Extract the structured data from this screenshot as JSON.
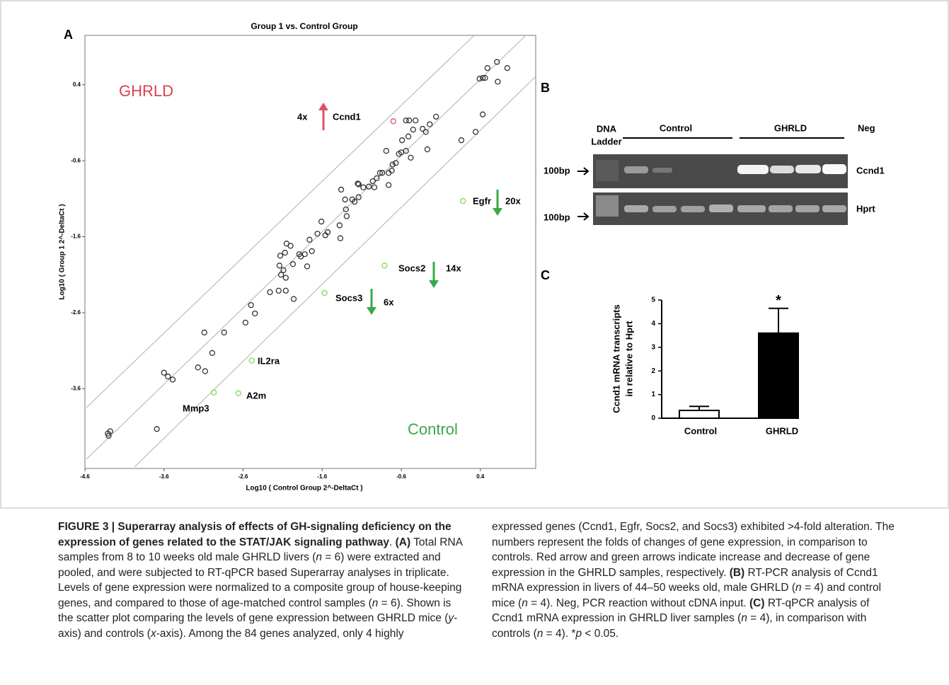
{
  "panel_labels": [
    "A",
    "B",
    "C"
  ],
  "chart_data": [
    {
      "type": "scatter",
      "title": "Group 1 vs. Control Group",
      "x_label": "Log10 ( Control Group 2^-DeltaCt )",
      "y_label": "Log10 ( Group 1 2^-DeltaCt )",
      "xlim": [
        -4.6,
        1.1
      ],
      "ylim": [
        -4.65,
        1.05
      ],
      "xticks": [
        -4.6,
        -3.6,
        -2.6,
        -1.6,
        -0.6,
        0.4
      ],
      "yticks": [
        0.4,
        -0.6,
        -1.6,
        -2.6,
        -3.6
      ],
      "series": [
        {
          "color": "#333333",
          "x": [
            0.61,
            0.74,
            0.49,
            0.43,
            0.46,
            0.39,
            0.62,
            0.43,
            0.34,
            0.16,
            -0.16,
            -0.24,
            -0.29,
            -0.33,
            -0.27,
            -0.42,
            -0.5,
            -0.54,
            -0.45,
            -0.51,
            -0.59,
            -0.6,
            -0.54,
            -0.48,
            -0.63,
            -0.67,
            -0.71,
            -0.79,
            -0.72,
            -0.76,
            -0.84,
            -0.87,
            -0.91,
            -0.96,
            -1.01,
            -0.94,
            -0.76,
            -1.08,
            -1.14,
            -1.14,
            -1.19,
            -1.22,
            -1.15,
            -1.36,
            -1.31,
            -1.3,
            -1.29,
            -1.38,
            -1.37,
            -1.53,
            -1.56,
            -1.61,
            -1.66,
            -1.73,
            -1.76,
            -1.79,
            -1.97,
            -2.05,
            -2.13,
            -2.14,
            -2.09,
            -1.87,
            -1.82,
            -1.89,
            -2.0,
            -2.07,
            -1.96,
            -2.06,
            -2.06,
            -2.12,
            -2.15,
            -2.26,
            -2.45,
            -2.5,
            -2.57,
            -3.09,
            -2.84,
            -2.99,
            -3.17,
            -3.08,
            -3.6,
            -3.55,
            -3.49,
            -3.69,
            -4.31,
            -4.28,
            -4.3
          ],
          "values": [
            0.7,
            0.62,
            0.62,
            0.49,
            0.49,
            0.48,
            0.44,
            0.01,
            -0.22,
            -0.33,
            -0.02,
            -0.12,
            -0.22,
            -0.18,
            -0.45,
            -0.07,
            -0.07,
            -0.07,
            -0.19,
            -0.28,
            -0.33,
            -0.49,
            -0.47,
            -0.56,
            -0.51,
            -0.63,
            -0.65,
            -0.47,
            -0.73,
            -0.76,
            -0.76,
            -0.76,
            -0.83,
            -0.87,
            -0.94,
            -0.95,
            -0.92,
            -0.95,
            -0.91,
            -1.08,
            -1.14,
            -1.11,
            -0.9,
            -0.98,
            -1.11,
            -1.24,
            -1.33,
            -1.45,
            -1.62,
            -1.54,
            -1.58,
            -1.4,
            -1.56,
            -1.79,
            -1.64,
            -1.99,
            -1.96,
            -1.69,
            -1.85,
            -1.98,
            -2.04,
            -1.86,
            -1.83,
            -1.83,
            -1.72,
            -1.81,
            -2.42,
            -2.14,
            -2.31,
            -2.1,
            -2.31,
            -2.33,
            -2.61,
            -2.5,
            -2.73,
            -2.86,
            -2.86,
            -3.13,
            -3.32,
            -3.37,
            -3.39,
            -3.44,
            -3.48,
            -4.13,
            -4.19,
            -4.16,
            -4.22
          ]
        },
        {
          "color": "#e0506a",
          "x": [
            -0.7
          ],
          "values": [
            -0.08
          ]
        },
        {
          "color": "#7ed957",
          "x": [
            0.18,
            -0.81,
            -1.57,
            -2.49,
            -2.97,
            -2.66
          ],
          "values": [
            -1.13,
            -1.98,
            -2.34,
            -3.23,
            -3.65,
            -3.66
          ]
        }
      ],
      "annotations": {
        "group_up": "GHRLD",
        "group_down": "Control",
        "ccnd1_fold": "4x",
        "ccnd1": "Ccnd1",
        "egfr": "Egfr",
        "egfr_fold": "20x",
        "socs2": "Socs2",
        "socs2_fold": "14x",
        "socs3": "Socs3",
        "socs3_fold": "6x",
        "il2ra": "IL2ra",
        "a2m": "A2m",
        "mmp3": "Mmp3"
      }
    },
    {
      "type": "bar",
      "y_label_lines": [
        "Ccnd1 mRNA transcripts",
        "in relative to Hprt"
      ],
      "categories": [
        "Control",
        "GHRLD"
      ],
      "values": [
        0.33,
        3.6
      ],
      "errors": [
        0.17,
        1.05
      ],
      "colors": [
        "#ffffff",
        "#000000"
      ],
      "ylim": [
        0,
        5
      ],
      "yticks": [
        0,
        1,
        2,
        3,
        4,
        5
      ],
      "annotation": "*"
    }
  ],
  "gel": {
    "ladder_label_lines": [
      "DNA",
      "Ladder"
    ],
    "groups": [
      "Control",
      "GHRLD",
      "Neg"
    ],
    "size_markers": [
      "100bp",
      "100bp"
    ],
    "genes": [
      "Ccnd1",
      "Hprt"
    ]
  },
  "caption": {
    "column_1": [
      {
        "text": "FIGURE 3 | Superarray analysis of effects of GH-signaling deficiency on the expression of genes related to the STAT/JAK signaling pathway",
        "bold": true
      },
      {
        "text": ". "
      },
      {
        "text": "(A)",
        "bold": true
      },
      {
        "text": " Total RNA samples from 8 to 10 weeks old male GHRLD livers ("
      },
      {
        "text": "n",
        "italic": true
      },
      {
        "text": " = 6) were extracted and pooled, and were subjected to RT-qPCR based Superarray analyses in triplicate. Levels of gene expression were normalized to a composite group of house-keeping genes, and compared to those of age-matched control samples ("
      },
      {
        "text": "n",
        "italic": true
      },
      {
        "text": " = 6). Shown is the scatter plot comparing the levels of gene expression between GHRLD mice ("
      },
      {
        "text": "y",
        "italic": true
      },
      {
        "text": "-axis) and controls ("
      },
      {
        "text": "x",
        "italic": true
      },
      {
        "text": "-axis). Among the 84 genes analyzed, only 4 highly"
      }
    ],
    "column_2": [
      {
        "text": "expressed genes (Ccnd1, Egfr, Socs2, and Socs3) exhibited >4-fold alteration. The numbers represent the folds of changes of gene expression, in comparison to controls. Red arrow and green arrows indicate increase and decrease of gene expression in the GHRLD samples, respectively. "
      },
      {
        "text": "(B)",
        "bold": true
      },
      {
        "text": " RT-PCR analysis of Ccnd1 mRNA expression in livers of 44–50 weeks old, male GHRLD ("
      },
      {
        "text": "n",
        "italic": true
      },
      {
        "text": " = 4) and control mice ("
      },
      {
        "text": "n",
        "italic": true
      },
      {
        "text": " = 4). Neg, PCR reaction without cDNA input. "
      },
      {
        "text": "(C)",
        "bold": true
      },
      {
        "text": " RT-qPCR analysis of Ccnd1 mRNA expression in GHRLD liver samples ("
      },
      {
        "text": "n",
        "italic": true
      },
      {
        "text": " = 4), in comparison with controls ("
      },
      {
        "text": "n",
        "italic": true
      },
      {
        "text": " = 4). *"
      },
      {
        "text": "p",
        "italic": true
      },
      {
        "text": " < 0.05."
      }
    ]
  }
}
